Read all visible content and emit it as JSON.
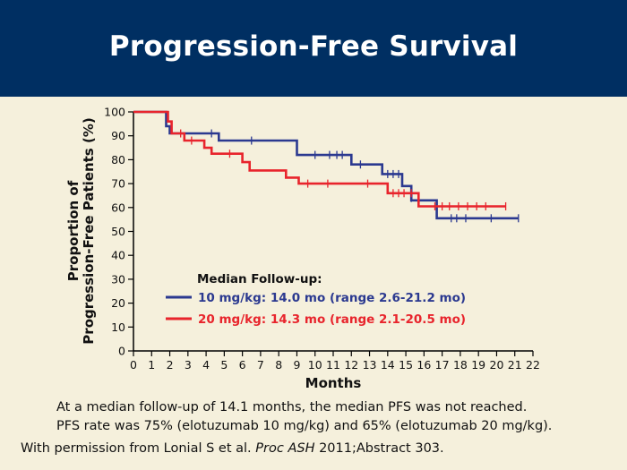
{
  "slide": {
    "title": "Progression-Free Survival",
    "footnote_1": "At a median follow-up of 14.1 months, the median PFS was not reached.",
    "footnote_2": "PFS rate was 75% (elotuzumab 10 mg/kg) and 65% (elotuzumab 20 mg/kg).",
    "citation_prefix": "With permission from Lonial S et al.",
    "citation_journal": "Proc ASH",
    "citation_suffix": "2011;Abstract 303."
  },
  "colors": {
    "header_bg": "#002f62",
    "background": "#f5f0dc",
    "series_10": "#2b3990",
    "series_20": "#e8242c"
  },
  "chart_data": {
    "type": "line",
    "step": true,
    "ylabel_line1": "Proportion of",
    "ylabel_line2": "Progression-Free Patients (%)",
    "xlabel": "Months",
    "xlim": [
      0,
      22
    ],
    "ylim": [
      0,
      100
    ],
    "x_ticks": [
      0,
      1,
      2,
      3,
      4,
      5,
      6,
      7,
      8,
      9,
      10,
      11,
      12,
      13,
      14,
      15,
      16,
      17,
      18,
      19,
      20,
      21,
      22
    ],
    "y_ticks": [
      0,
      10,
      20,
      30,
      40,
      50,
      60,
      70,
      80,
      90,
      100
    ],
    "grid": false,
    "legend_title": "Median Follow-up:",
    "legend_position": "center-left",
    "series": [
      {
        "name": "10 mg/kg: 14.0 mo (range 2.6-21.2 mo)",
        "color": "#2b3990",
        "steps": [
          [
            0,
            100
          ],
          [
            1.8,
            100
          ],
          [
            1.8,
            94
          ],
          [
            2.0,
            94
          ],
          [
            2.0,
            91
          ],
          [
            4.7,
            91
          ],
          [
            4.7,
            88
          ],
          [
            9.0,
            88
          ],
          [
            9.0,
            82
          ],
          [
            12.0,
            82
          ],
          [
            12.0,
            78
          ],
          [
            13.7,
            78
          ],
          [
            13.7,
            74
          ],
          [
            14.8,
            74
          ],
          [
            14.8,
            69
          ],
          [
            15.3,
            69
          ],
          [
            15.3,
            63
          ],
          [
            16.7,
            63
          ],
          [
            16.7,
            55.5
          ],
          [
            21.2,
            55.5
          ]
        ],
        "censored": [
          [
            4.3,
            91
          ],
          [
            6.5,
            88
          ],
          [
            10.0,
            82
          ],
          [
            10.8,
            82
          ],
          [
            11.2,
            82
          ],
          [
            11.5,
            82
          ],
          [
            12.5,
            78
          ],
          [
            14.0,
            74
          ],
          [
            14.3,
            74
          ],
          [
            14.6,
            74
          ],
          [
            15.3,
            64
          ],
          [
            17.5,
            55.5
          ],
          [
            17.8,
            55.5
          ],
          [
            18.3,
            55.5
          ],
          [
            19.7,
            55.5
          ],
          [
            21.2,
            55.5
          ]
        ]
      },
      {
        "name": "20 mg/kg: 14.3 mo (range 2.1-20.5 mo)",
        "color": "#e8242c",
        "steps": [
          [
            0,
            100
          ],
          [
            1.9,
            100
          ],
          [
            1.9,
            96
          ],
          [
            2.1,
            96
          ],
          [
            2.1,
            91
          ],
          [
            2.8,
            91
          ],
          [
            2.8,
            88
          ],
          [
            3.9,
            88
          ],
          [
            3.9,
            85
          ],
          [
            4.3,
            85
          ],
          [
            4.3,
            82.5
          ],
          [
            6.0,
            82.5
          ],
          [
            6.0,
            79
          ],
          [
            6.4,
            79
          ],
          [
            6.4,
            75.5
          ],
          [
            8.4,
            75.5
          ],
          [
            8.4,
            72.5
          ],
          [
            9.1,
            72.5
          ],
          [
            9.1,
            70
          ],
          [
            14.0,
            70
          ],
          [
            14.0,
            66
          ],
          [
            15.7,
            66
          ],
          [
            15.7,
            60.5
          ],
          [
            20.5,
            60.5
          ]
        ],
        "censored": [
          [
            2.6,
            91
          ],
          [
            3.2,
            88
          ],
          [
            5.3,
            82.5
          ],
          [
            9.6,
            70
          ],
          [
            10.7,
            70
          ],
          [
            12.9,
            70
          ],
          [
            14.3,
            66
          ],
          [
            14.6,
            66
          ],
          [
            14.9,
            66
          ],
          [
            15.3,
            66
          ],
          [
            16.6,
            60.5
          ],
          [
            17.0,
            60.5
          ],
          [
            17.4,
            60.5
          ],
          [
            17.9,
            60.5
          ],
          [
            18.4,
            60.5
          ],
          [
            18.9,
            60.5
          ],
          [
            19.4,
            60.5
          ],
          [
            20.5,
            60.5
          ]
        ]
      }
    ]
  }
}
